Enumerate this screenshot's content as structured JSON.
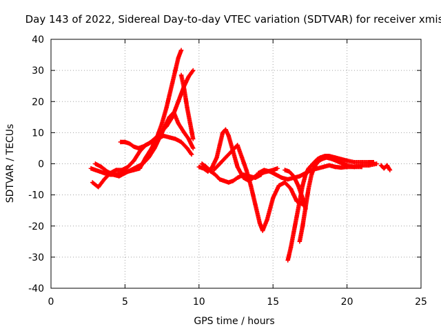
{
  "chart_data": {
    "type": "scatter",
    "title": "Day 143 of 2022, Sidereal Day-to-day VTEC variation (SDTVAR) for receiver xmis",
    "xlabel": "GPS time / hours",
    "ylabel": "SDTVAR / TECUs",
    "xlim": [
      0,
      25
    ],
    "ylim": [
      -40,
      40
    ],
    "xticks": [
      0,
      5,
      10,
      15,
      20,
      25
    ],
    "yticks": [
      -40,
      -30,
      -20,
      -10,
      0,
      10,
      20,
      30,
      40
    ],
    "grid": true,
    "legend": "none",
    "marker": "+",
    "series_color": "#ff0000",
    "series": [
      {
        "x": [
          2.7,
          3.0,
          3.3,
          3.6,
          4.0,
          4.4,
          4.8,
          5.2,
          5.6,
          6.0,
          6.4,
          6.8,
          7.2,
          7.5,
          7.8,
          8.0,
          8.2,
          8.4,
          8.6,
          8.8
        ],
        "y": [
          -1.5,
          -2.0,
          -2.5,
          -3.0,
          -3.5,
          -3.5,
          -3.0,
          -2.5,
          -2.0,
          -1.5,
          2.0,
          5.0,
          9.0,
          13.0,
          18.0,
          22.0,
          26.0,
          30.0,
          34.0,
          36.5
        ]
      },
      {
        "x": [
          2.8,
          3.2,
          3.6,
          4.0,
          4.4,
          4.8,
          5.2,
          5.6,
          6.0,
          6.4,
          6.8,
          7.2,
          7.6,
          8.0,
          8.4,
          8.8,
          9.2,
          9.5
        ],
        "y": [
          -6.0,
          -7.5,
          -5.0,
          -3.0,
          -2.0,
          -2.0,
          -1.0,
          1.0,
          4.0,
          6.0,
          7.0,
          8.0,
          9.0,
          8.5,
          8.0,
          7.0,
          5.0,
          3.0
        ]
      },
      {
        "x": [
          3.0,
          3.4,
          3.8,
          4.2,
          4.6,
          5.0,
          5.4,
          5.8,
          6.2,
          6.6,
          7.0,
          7.4,
          7.7,
          8.0,
          8.3,
          8.6,
          9.0,
          9.3,
          9.6
        ],
        "y": [
          0.0,
          -1.0,
          -2.5,
          -3.5,
          -4.0,
          -3.0,
          -2.0,
          -1.0,
          0.0,
          2.0,
          5.0,
          9.0,
          12.0,
          15.0,
          16.5,
          13.0,
          10.0,
          8.0,
          5.0
        ]
      },
      {
        "x": [
          4.7,
          5.0,
          5.3,
          5.6,
          5.9,
          6.2,
          6.6,
          7.0,
          7.4,
          7.8,
          8.2,
          8.6,
          9.0,
          9.3,
          9.6
        ],
        "y": [
          7.0,
          7.0,
          6.5,
          5.5,
          5.0,
          5.5,
          6.5,
          8.0,
          10.0,
          12.0,
          15.0,
          20.0,
          25.0,
          28.0,
          30.0
        ]
      },
      {
        "x": [
          8.8,
          9.0,
          9.2,
          9.4,
          9.6
        ],
        "y": [
          28.5,
          24.0,
          18.0,
          13.0,
          8.0
        ]
      },
      {
        "x": [
          10.0,
          10.3,
          10.6,
          10.9,
          11.2,
          11.4,
          11.6,
          11.8,
          12.0,
          12.3,
          12.6,
          13.0,
          13.4,
          13.8,
          14.2,
          14.6,
          15.0,
          15.3
        ],
        "y": [
          -1.0,
          -1.5,
          -2.5,
          -1.0,
          2.0,
          6.0,
          10.0,
          11.0,
          9.0,
          4.0,
          -1.0,
          -4.5,
          -5.5,
          -4.0,
          -3.0,
          -2.5,
          -2.0,
          -1.5
        ]
      },
      {
        "x": [
          10.2,
          10.5,
          10.8,
          11.1,
          11.4,
          11.7,
          12.0,
          12.3,
          12.6,
          13.0,
          13.4,
          13.8,
          14.0,
          14.2
        ],
        "y": [
          0.0,
          -1.0,
          -2.5,
          -3.5,
          -5.0,
          -5.5,
          -6.0,
          -5.5,
          -4.5,
          -3.5,
          -4.0,
          -4.5,
          -4.0,
          -3.5
        ]
      },
      {
        "x": [
          11.0,
          11.4,
          11.8,
          12.2,
          12.6,
          12.9,
          13.2,
          13.5,
          13.8,
          14.1,
          14.3,
          14.6,
          15.0,
          15.4,
          15.8,
          16.2,
          16.6,
          17.0
        ],
        "y": [
          -2.0,
          0.0,
          2.0,
          4.0,
          6.0,
          2.0,
          -2.0,
          -7.0,
          -13.0,
          -19.0,
          -21.5,
          -18.0,
          -11.0,
          -7.0,
          -6.0,
          -8.0,
          -12.0,
          -13.0
        ]
      },
      {
        "x": [
          14.0,
          14.4,
          14.8,
          15.2,
          15.6,
          16.0,
          16.4,
          16.8,
          17.2,
          17.6,
          18.0,
          18.4,
          18.8,
          19.2,
          19.6,
          20.0,
          20.5,
          21.0,
          21.5,
          22.0
        ],
        "y": [
          -3.0,
          -2.0,
          -2.5,
          -3.5,
          -4.5,
          -5.0,
          -4.5,
          -4.0,
          -3.0,
          -2.0,
          -1.5,
          -1.0,
          -0.5,
          -1.0,
          -1.2,
          -1.0,
          -1.0,
          -0.5,
          -0.5,
          0.0
        ]
      },
      {
        "x": [
          16.0,
          16.2,
          16.4,
          16.6,
          16.8,
          17.0,
          17.2,
          17.4,
          17.6,
          17.8,
          18.0,
          18.2,
          18.5,
          18.8,
          19.2,
          19.6,
          20.0,
          20.5,
          21.0,
          21.5,
          21.8
        ],
        "y": [
          -31.0,
          -27.0,
          -22.0,
          -17.0,
          -12.0,
          -7.0,
          -3.5,
          -1.5,
          -0.5,
          0.5,
          1.5,
          2.0,
          2.5,
          2.5,
          2.0,
          1.5,
          1.0,
          0.5,
          0.5,
          0.5,
          0.5
        ]
      },
      {
        "x": [
          16.8,
          17.0,
          17.2,
          17.4,
          17.6,
          17.8,
          18.0,
          18.3,
          18.6,
          19.0,
          19.5,
          20.0,
          20.5,
          21.0
        ],
        "y": [
          -25.0,
          -20.0,
          -14.0,
          -8.0,
          -3.5,
          -1.0,
          0.5,
          1.5,
          2.0,
          1.5,
          0.5,
          -0.5,
          -1.0,
          -1.0
        ]
      },
      {
        "x": [
          15.8,
          16.1,
          16.4,
          16.7,
          17.0,
          17.2
        ],
        "y": [
          -2.0,
          -2.5,
          -4.0,
          -7.0,
          -11.0,
          -14.5
        ]
      },
      {
        "x": [
          22.3,
          22.5,
          22.7,
          22.9
        ],
        "y": [
          -0.5,
          -1.5,
          -0.5,
          -2.0
        ]
      }
    ]
  }
}
